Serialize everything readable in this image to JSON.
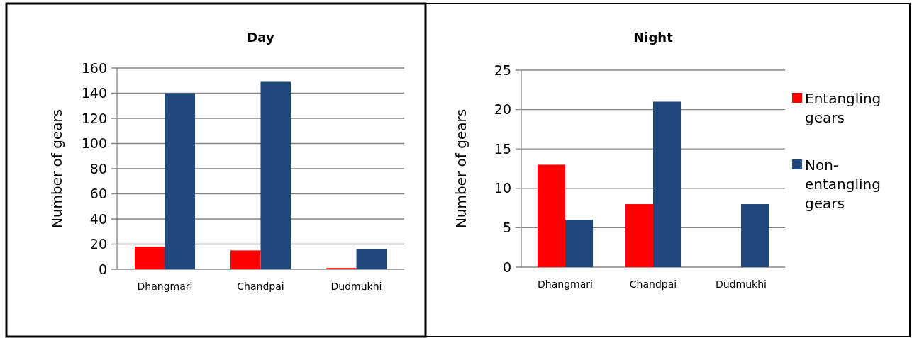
{
  "chart_data": [
    {
      "type": "bar",
      "title": "Day",
      "ylabel": "Number of gears",
      "categories": [
        "Dhangmari",
        "Chandpai",
        "Dudmukhi"
      ],
      "series": [
        {
          "color": "#ff0000",
          "values": [
            18,
            15,
            1
          ]
        },
        {
          "color": "#1f497d",
          "values": [
            140,
            149,
            16
          ]
        }
      ],
      "ylim": [
        0,
        160
      ],
      "yticks": [
        0,
        20,
        40,
        60,
        80,
        100,
        120,
        140,
        160
      ],
      "grid": "y",
      "legend": false
    },
    {
      "type": "bar",
      "title": "Night",
      "ylabel": "Number of gears",
      "categories": [
        "Dhangmari",
        "Chandpai",
        "Dudmukhi"
      ],
      "series": [
        {
          "name": "Entangling gears",
          "color": "#ff0000",
          "values": [
            13,
            8,
            0
          ]
        },
        {
          "name": "Non-entangling gears",
          "color": "#1f497d",
          "values": [
            6,
            21,
            8
          ]
        }
      ],
      "ylim": [
        0,
        25
      ],
      "yticks": [
        0,
        5,
        10,
        15,
        20,
        25
      ],
      "grid": "y",
      "legend": "right"
    }
  ]
}
